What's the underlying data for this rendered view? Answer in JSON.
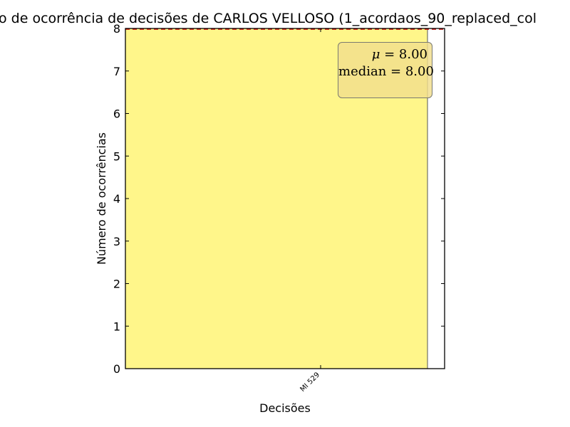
{
  "colors": {
    "bar_fill": "#fff68a",
    "bar_edge": "#555555",
    "mean_line": "#cc0000",
    "stat_box_bg": "#f5dd90",
    "stat_box_border": "#7a7a70"
  },
  "chart_data": {
    "type": "bar",
    "title": "o de ocorrência de decisões de CARLOS VELLOSO (1_acordaos_90_replaced_col",
    "xlabel": "Decisões",
    "ylabel": "Número de ocorrências",
    "categories": [
      "MI 529"
    ],
    "values": [
      8
    ],
    "ylim": [
      0,
      8
    ],
    "yticks": [
      "0",
      "1",
      "2",
      "3",
      "4",
      "5",
      "6",
      "7",
      "8"
    ],
    "mean_line": 8,
    "grid": false,
    "annotation": {
      "mean_label": "μ",
      "mean_value": "8.00",
      "median_label": "median",
      "median_value": "8.00"
    }
  }
}
